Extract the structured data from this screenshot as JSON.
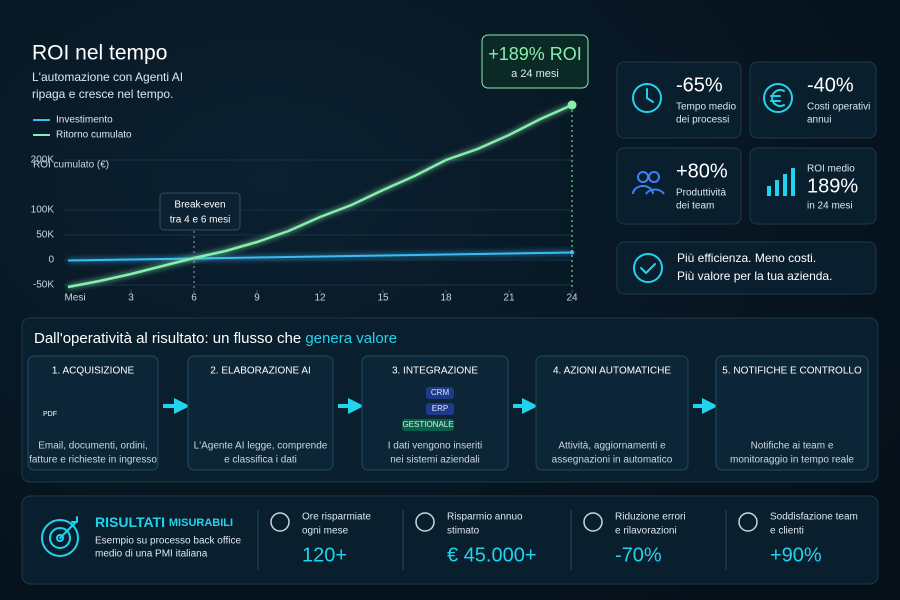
{
  "chart_data": {
    "type": "line",
    "title": "ROI nel tempo",
    "subtitle": [
      "L'automazione con Agenti AI",
      "ripaga e cresce nel tempo."
    ],
    "ylabel": "ROI cumulato (€)",
    "xlabel": "Mesi",
    "x": [
      0,
      1.5,
      3,
      4.5,
      6,
      7.5,
      9,
      10.5,
      12,
      13.5,
      15,
      16.5,
      18,
      19.5,
      21,
      22.5,
      24
    ],
    "series": [
      {
        "name": "Investimento",
        "color": "#38bdf8",
        "values": [
          -1000,
          0,
          1000,
          2000,
          3000,
          4000,
          5000,
          6000,
          7000,
          8000,
          9000,
          10000,
          11000,
          12000,
          13000,
          14000,
          15000
        ]
      },
      {
        "name": "Ritorno cumulato",
        "color": "#86efac",
        "values": [
          -54000,
          -42000,
          -28000,
          -12000,
          4000,
          18000,
          36000,
          58000,
          86000,
          110000,
          140000,
          168000,
          200000,
          222000,
          250000,
          282000,
          310000
        ]
      }
    ],
    "xlim": [
      0,
      24
    ],
    "xticks": [
      3,
      6,
      9,
      12,
      15,
      18,
      21,
      24
    ],
    "ylim": [
      -60000,
      380000
    ],
    "yticks": [
      {
        "value": -50000,
        "label": "-50K"
      },
      0,
      {
        "value": 50000,
        "label": "50K"
      },
      {
        "value": 100000,
        "label": "100K"
      },
      {
        "value": 200000,
        "label": "200K"
      }
    ],
    "grid": true,
    "break_even": [
      "Break-even",
      "tra 4 e 6 mesi"
    ],
    "roi_callout": [
      "+189% ROI",
      "a 24 mesi"
    ]
  },
  "stats": [
    {
      "value": "-65%",
      "label": [
        "Tempo medio",
        "dei processi"
      ]
    },
    {
      "value": "-40%",
      "label": [
        "Costi operativi",
        "annui"
      ]
    },
    {
      "value": "+80%",
      "label": [
        "Produttività",
        "dei team"
      ]
    },
    {
      "value": "189%",
      "label_top": "ROI medio",
      "label": [
        "in 24 mesi"
      ]
    }
  ],
  "banner": [
    "Più efficienza. Meno costi.",
    "Più valore per la tua azienda."
  ],
  "flow": {
    "title": "Dall'operatività al risultato: un flusso che",
    "highlight": "genera valore",
    "steps": [
      {
        "title": "1. ACQUISIZIONE",
        "desc": [
          "Email, documenti, ordini,",
          "fatture e richieste in ingresso"
        ],
        "tags": [
          "PDF"
        ]
      },
      {
        "title": "2. ELABORAZIONE AI",
        "desc": [
          "L'Agente AI legge, comprende",
          "e classifica i dati"
        ],
        "tags": []
      },
      {
        "title": "3. INTEGRAZIONE",
        "desc": [
          "I dati vengono inseriti",
          "nei sistemi aziendali"
        ],
        "tags": [
          "CRM",
          "ERP",
          "GESTIONALE"
        ]
      },
      {
        "title": "4. AZIONI AUTOMATICHE",
        "desc": [
          "Attività, aggiornamenti e",
          "assegnazioni in automatico"
        ],
        "tags": []
      },
      {
        "title": "5. NOTIFICHE E CONTROLLO",
        "desc": [
          "Notifiche ai team e",
          "monitoraggio in tempo reale"
        ],
        "tags": []
      }
    ]
  },
  "results": {
    "title": "RISULTATI",
    "title_small": "MISURABILI",
    "desc": [
      "Esempio su processo back office",
      "medio di una PMI italiana"
    ],
    "items": [
      {
        "label": [
          "Ore risparmiate",
          "ogni mese"
        ],
        "value": "120+"
      },
      {
        "label": [
          "Risparmio annuo",
          "stimato"
        ],
        "value": "€ 45.000+"
      },
      {
        "label": [
          "Riduzione errori",
          "e rilavorazioni"
        ],
        "value": "-70%"
      },
      {
        "label": [
          "Soddisfazione team",
          "e clienti"
        ],
        "value": "+90%"
      }
    ]
  }
}
